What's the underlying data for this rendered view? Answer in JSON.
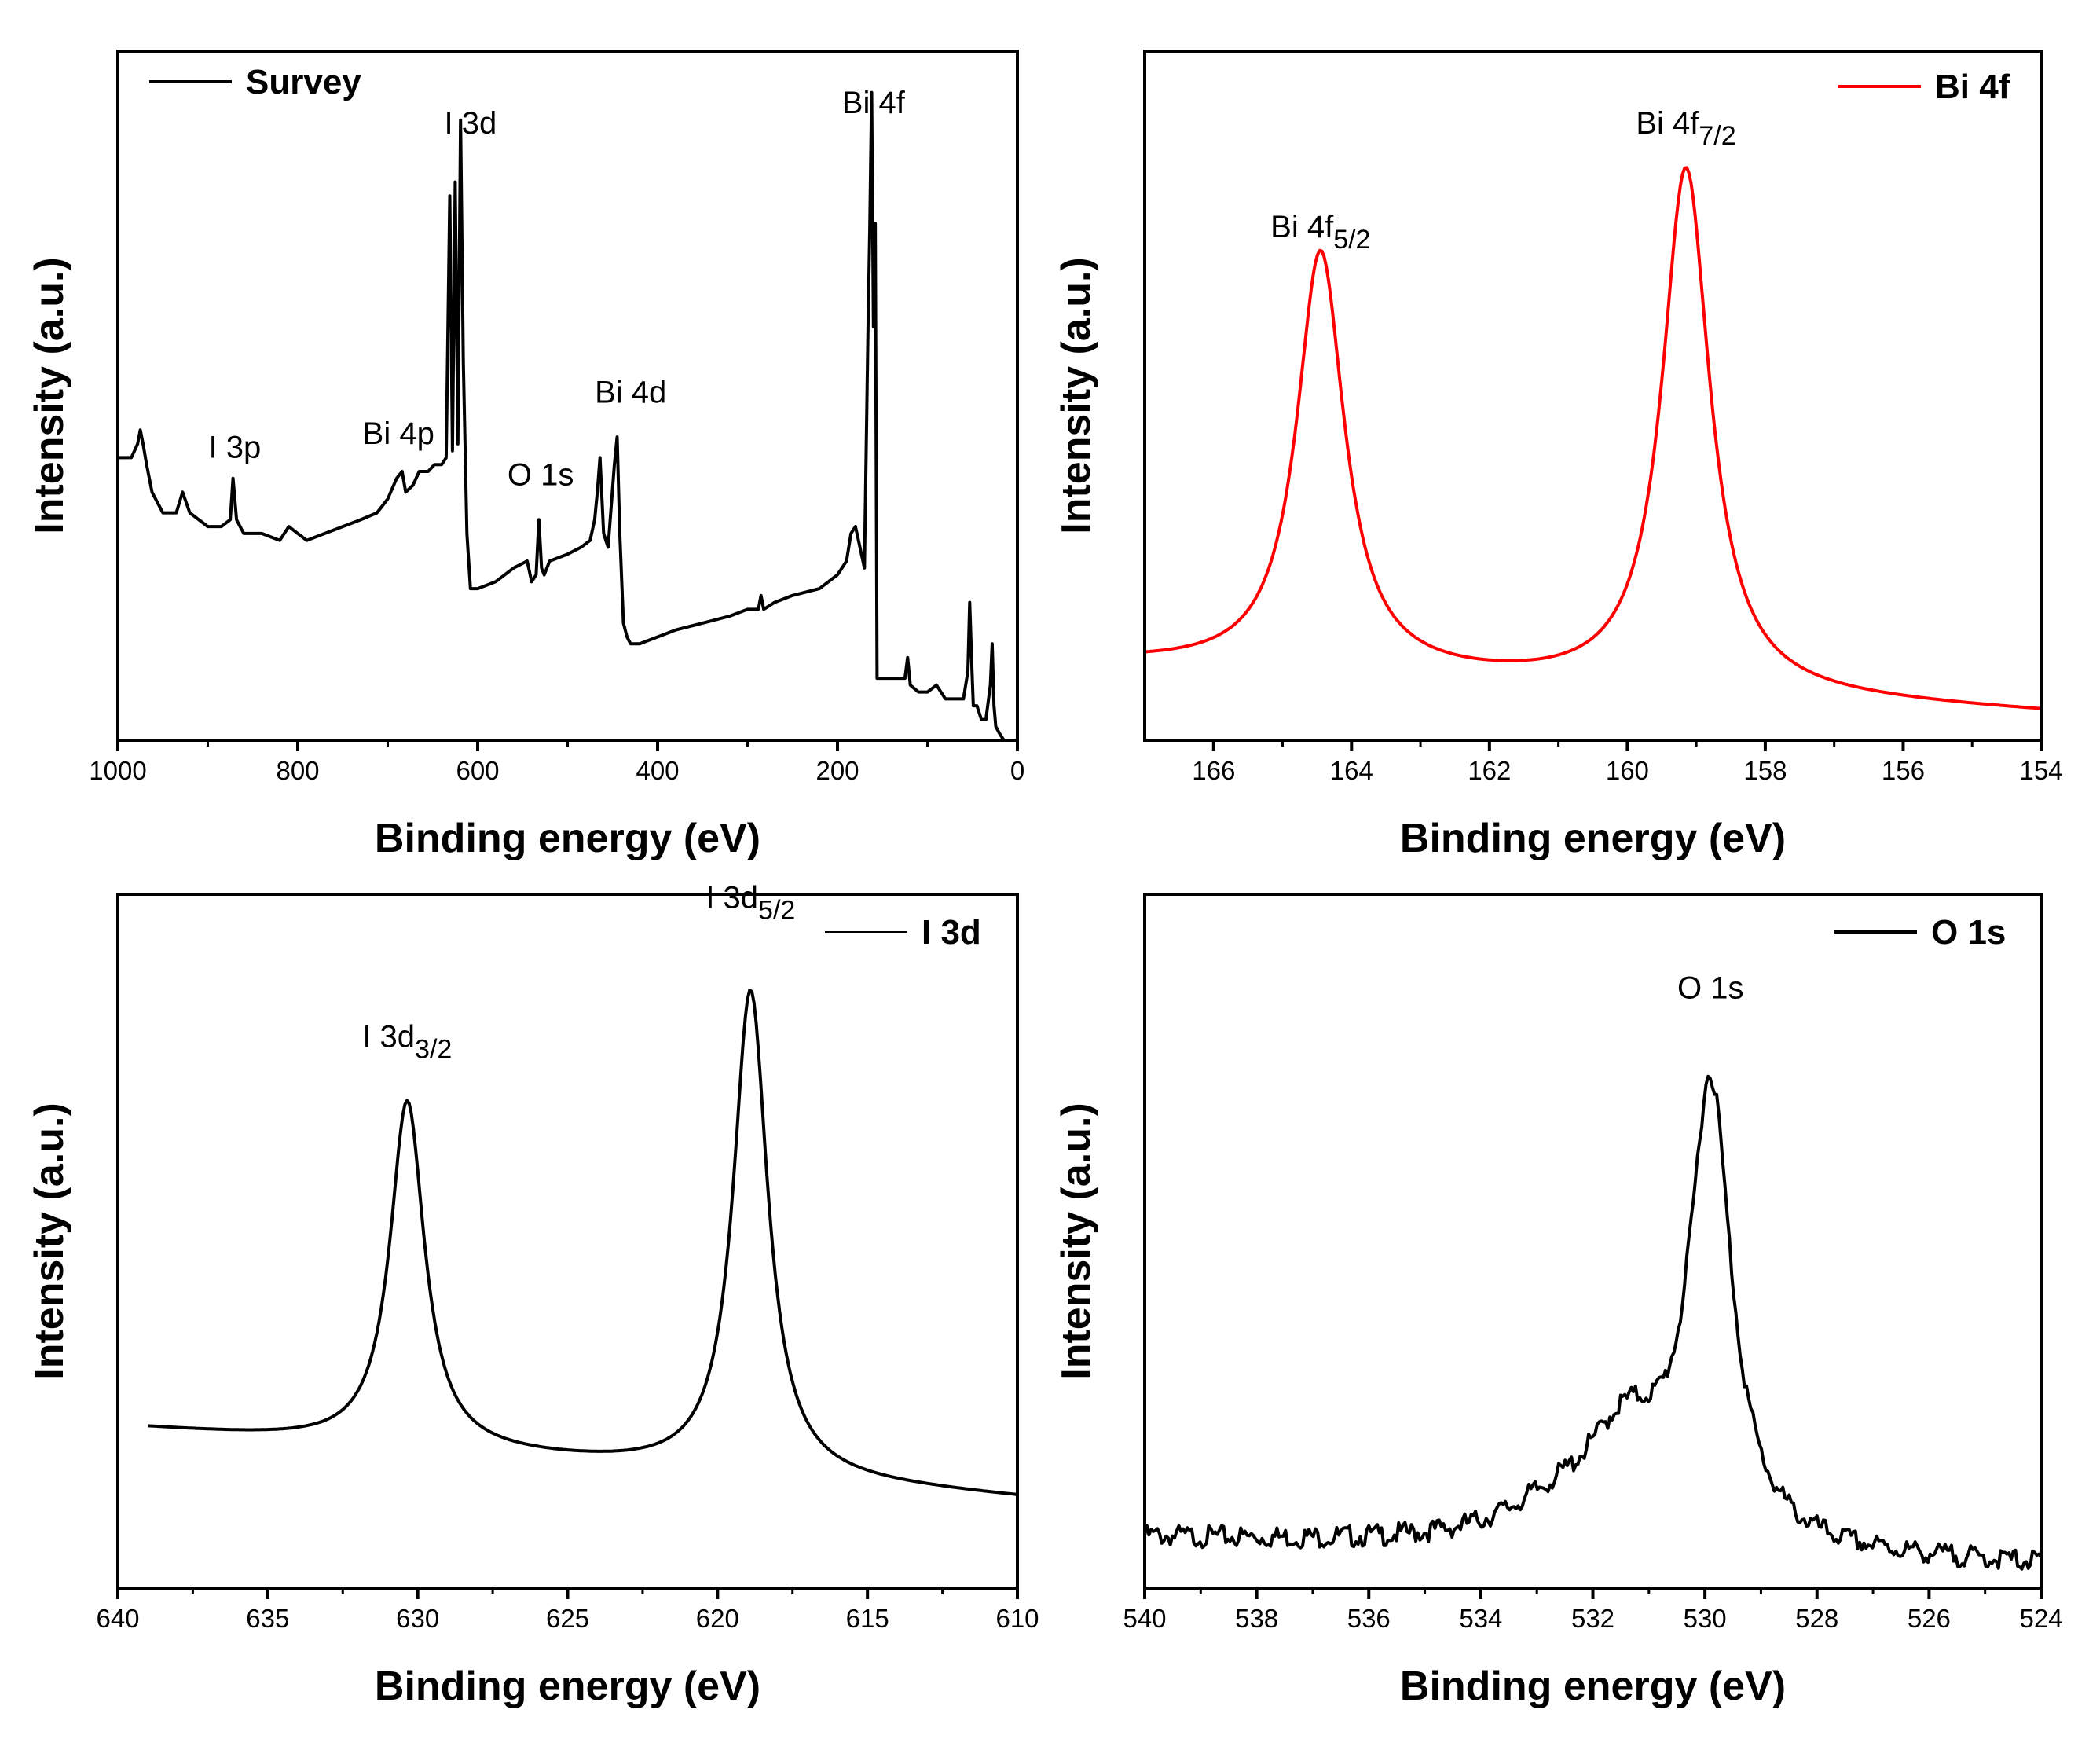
{
  "chart_data": [
    {
      "type": "line",
      "panel": "survey",
      "legend": "Survey",
      "legend_position": "top-left",
      "color": "#000000",
      "xlabel": "Binding energy (eV)",
      "ylabel": "Intensity (a.u.)",
      "xlim": [
        1000,
        0
      ],
      "ylim": [
        0,
        100
      ],
      "xticks": [
        1000,
        800,
        600,
        400,
        200,
        0
      ],
      "xtick_labels": [
        "1000",
        "800",
        "600",
        "400",
        "200",
        "0"
      ],
      "annotations": [
        {
          "text": "I 3p",
          "x": 870,
          "y": 41
        },
        {
          "text": "Bi 4p",
          "x": 688,
          "y": 43
        },
        {
          "text": "I 3d",
          "x": 608,
          "y": 88
        },
        {
          "text": "O 1s",
          "x": 530,
          "y": 37
        },
        {
          "text": "Bi 4d",
          "x": 430,
          "y": 49
        },
        {
          "text": "Bi 4f",
          "x": 160,
          "y": 91
        }
      ],
      "x": [
        1000,
        985,
        978,
        975,
        972,
        968,
        962,
        950,
        935,
        928,
        920,
        900,
        885,
        875,
        872,
        868,
        860,
        840,
        820,
        810,
        800,
        790,
        770,
        750,
        730,
        712,
        700,
        690,
        684,
        680,
        672,
        665,
        655,
        648,
        640,
        635,
        631,
        628,
        625,
        622,
        619,
        616,
        612,
        608,
        600,
        580,
        560,
        545,
        540,
        535,
        532,
        529,
        526,
        520,
        500,
        485,
        475,
        470,
        467,
        464,
        460,
        455,
        448,
        445,
        442,
        438,
        434,
        430,
        420,
        400,
        380,
        350,
        320,
        300,
        288,
        285,
        282,
        270,
        250,
        220,
        200,
        190,
        185,
        180,
        175,
        170,
        166,
        164,
        162,
        160,
        158,
        156,
        150,
        140,
        125,
        122,
        119,
        110,
        100,
        90,
        80,
        70,
        60,
        55,
        53,
        51,
        49,
        45,
        40,
        35,
        30,
        28,
        26,
        24,
        20,
        15,
        10,
        5,
        0
      ],
      "values": [
        41,
        41,
        43,
        45,
        43,
        40,
        36,
        33,
        33,
        36,
        33,
        31,
        31,
        32,
        38,
        32,
        30,
        30,
        29,
        31,
        30,
        29,
        30,
        31,
        32,
        33,
        35,
        38,
        39,
        36,
        37,
        39,
        39,
        40,
        40,
        41,
        79,
        42,
        81,
        43,
        90,
        55,
        30,
        22,
        22,
        23,
        25,
        26,
        23,
        24,
        32,
        25,
        24,
        26,
        27,
        28,
        29,
        32,
        36,
        41,
        30,
        28,
        40,
        44,
        30,
        17,
        15,
        14,
        14,
        15,
        16,
        17,
        18,
        19,
        19,
        21,
        19,
        20,
        21,
        22,
        24,
        26,
        30,
        31,
        28,
        25,
        60,
        75,
        94,
        60,
        75,
        9,
        9,
        9,
        9,
        12,
        8,
        7,
        7,
        8,
        6,
        6,
        6,
        10,
        20,
        12,
        5,
        5,
        3,
        3,
        8,
        14,
        5,
        2,
        1,
        0,
        0,
        0,
        0
      ]
    },
    {
      "type": "line",
      "panel": "bi4f",
      "legend": "Bi 4f",
      "legend_position": "top-right",
      "color": "#ff0000",
      "xlabel": "Binding energy (eV)",
      "ylabel": "Intensity (a.u.)",
      "xlim": [
        167,
        154
      ],
      "ylim": [
        0,
        100
      ],
      "xticks": [
        166,
        164,
        162,
        160,
        158,
        156,
        154
      ],
      "xtick_labels": [
        "166",
        "164",
        "162",
        "160",
        "158",
        "156",
        "154"
      ],
      "peaks": [
        {
          "center": 164.45,
          "height": 61,
          "width": 0.42
        },
        {
          "center": 159.15,
          "height": 76,
          "width": 0.42
        }
      ],
      "baseline": {
        "high_x": 167,
        "high_y": 11,
        "low_x": 154,
        "low_y": 4
      },
      "annotations": [
        {
          "main": "Bi 4f",
          "sub": "5/2",
          "x": 164.45,
          "y": 73
        },
        {
          "main": "Bi 4f",
          "sub": "7/2",
          "x": 159.15,
          "y": 88
        }
      ]
    },
    {
      "type": "line",
      "panel": "i3d",
      "legend": "I 3d",
      "legend_position": "top-right",
      "color": "#000000",
      "xlabel": "Binding energy (eV)",
      "ylabel": "Intensity (a.u.)",
      "xlim": [
        640,
        610
      ],
      "ylim": [
        0,
        100
      ],
      "xticks": [
        640,
        635,
        630,
        625,
        620,
        615,
        610
      ],
      "xtick_labels": [
        "640",
        "635",
        "630",
        "625",
        "620",
        "615",
        "610"
      ],
      "peaks": [
        {
          "center": 630.35,
          "height": 50,
          "width": 0.7
        },
        {
          "center": 618.9,
          "height": 70,
          "width": 0.7
        }
      ],
      "baseline": {
        "high_x": 639,
        "high_y": 23,
        "low_x": 610,
        "low_y": 13
      },
      "annotations": [
        {
          "main": "I 3d",
          "sub": "3/2",
          "x": 630.35,
          "y": 78
        },
        {
          "main": "I 3d",
          "sub": "5/2",
          "x": 618.9,
          "y": 98
        }
      ]
    },
    {
      "type": "line",
      "panel": "o1s",
      "legend": "O 1s",
      "legend_position": "top-right",
      "color": "#000000",
      "xlabel": "Binding energy (eV)",
      "ylabel": "Intensity (a.u.)",
      "xlim": [
        540,
        524
      ],
      "ylim": [
        0,
        100
      ],
      "xticks": [
        540,
        538,
        536,
        534,
        532,
        530,
        528,
        526,
        524
      ],
      "xtick_labels": [
        "540",
        "538",
        "536",
        "534",
        "532",
        "530",
        "528",
        "526",
        "524"
      ],
      "peaks": [
        {
          "center": 529.9,
          "height": 65,
          "width": 0.45
        },
        {
          "center": 531.4,
          "height": 15,
          "width": 0.9
        },
        {
          "center": 532.7,
          "height": 4,
          "width": 1.2
        }
      ],
      "baseline": {
        "high_x": 540,
        "high_y": 8,
        "low_x": 524,
        "low_y": 4
      },
      "annotations": [
        {
          "text": "O 1s",
          "x": 529.9,
          "y": 85
        }
      ]
    }
  ]
}
